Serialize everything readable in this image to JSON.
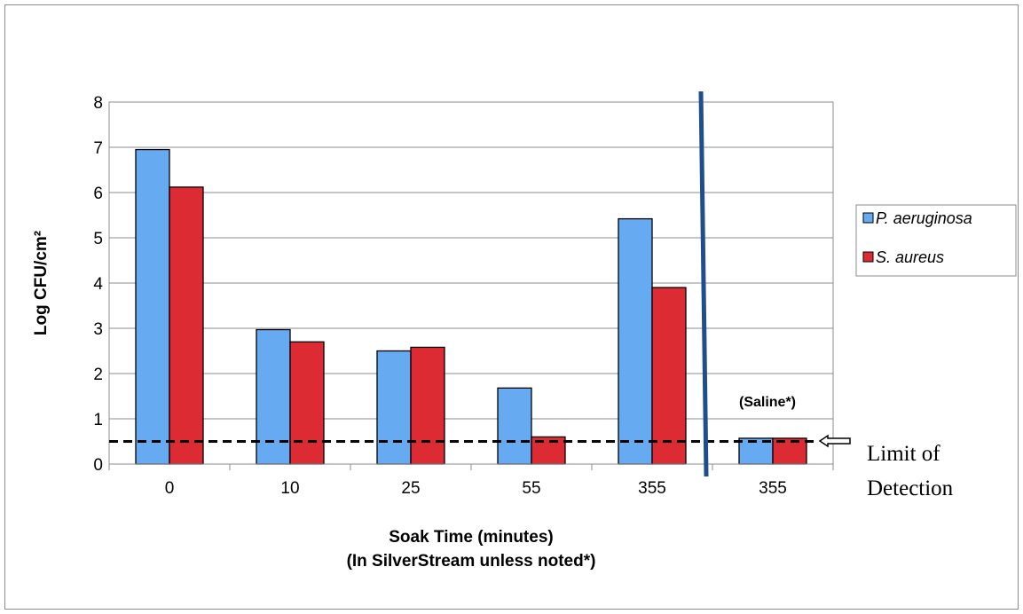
{
  "chart_data": {
    "type": "bar",
    "categories": [
      "0",
      "10",
      "25",
      "55",
      "355",
      "355"
    ],
    "series": [
      {
        "name": "P. aeruginosa",
        "values": [
          6.95,
          2.97,
          2.5,
          1.68,
          5.42,
          0.57
        ],
        "color": "#66aaf2"
      },
      {
        "name": "S. aureus",
        "values": [
          6.12,
          2.7,
          2.58,
          0.6,
          3.9,
          0.57
        ],
        "color": "#dd2b33"
      }
    ],
    "title": "",
    "xlabel": "Soak Time (minutes)",
    "xlabel_line2": "(In SilverStream unless noted*)",
    "ylabel": "Log CFU/cm²",
    "ylim": [
      0,
      8
    ],
    "yticks": [
      "0",
      "1",
      "2",
      "3",
      "4",
      "5",
      "6",
      "7",
      "8"
    ],
    "grid": true,
    "legend_position": "right",
    "limit_of_detection": 0.5,
    "limit_label_line1": "Limit of",
    "limit_label_line2": "Detection",
    "annotation": "(Saline*)",
    "separator_color": "#1f4e8c"
  }
}
